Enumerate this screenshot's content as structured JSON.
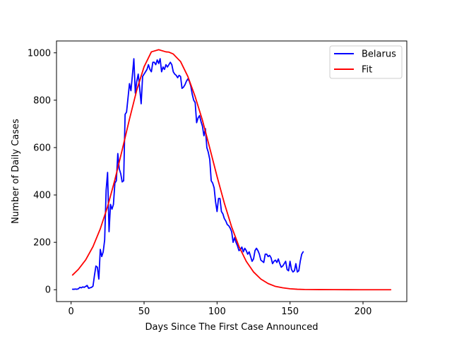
{
  "chart_data": {
    "type": "line",
    "title": "",
    "xlabel": "Days Since The First Case Announced",
    "ylabel": "Number of Daily Cases",
    "xlim": [
      -10,
      230
    ],
    "ylim": [
      -50,
      1050
    ],
    "xticks": [
      0,
      50,
      100,
      150,
      200
    ],
    "yticks": [
      0,
      200,
      400,
      600,
      800,
      1000
    ],
    "grid": false,
    "legend_position": "top-right",
    "series": [
      {
        "name": "Belarus",
        "color": "#0000ff",
        "x": [
          1,
          2,
          3,
          4,
          5,
          6,
          7,
          8,
          9,
          10,
          11,
          12,
          13,
          14,
          15,
          16,
          17,
          18,
          19,
          20,
          21,
          22,
          23,
          24,
          25,
          26,
          27,
          28,
          29,
          30,
          31,
          32,
          33,
          34,
          35,
          36,
          37,
          38,
          39,
          40,
          41,
          42,
          43,
          44,
          45,
          46,
          47,
          48,
          49,
          50,
          51,
          52,
          53,
          54,
          55,
          56,
          57,
          58,
          59,
          60,
          61,
          62,
          63,
          64,
          65,
          66,
          67,
          68,
          69,
          70,
          71,
          72,
          73,
          74,
          75,
          76,
          77,
          78,
          79,
          80,
          81,
          82,
          83,
          84,
          85,
          86,
          87,
          88,
          89,
          90,
          91,
          92,
          93,
          94,
          95,
          96,
          97,
          98,
          99,
          100,
          101,
          102,
          103,
          104,
          105,
          106,
          107,
          108,
          109,
          110,
          111,
          112,
          113,
          114,
          115,
          116,
          117,
          118,
          119,
          120,
          121,
          122,
          123,
          124,
          125,
          126,
          127,
          128,
          129,
          130,
          131,
          132,
          133,
          134,
          135,
          136,
          137,
          138,
          139,
          140,
          141,
          142,
          143,
          144,
          145,
          146,
          147,
          148,
          149,
          150,
          151,
          152,
          153,
          154,
          155,
          156,
          157,
          158,
          159
        ],
        "values": [
          2,
          2,
          3,
          2,
          4,
          10,
          8,
          12,
          10,
          14,
          18,
          6,
          8,
          10,
          15,
          60,
          100,
          95,
          45,
          170,
          140,
          160,
          210,
          420,
          495,
          245,
          360,
          340,
          360,
          450,
          460,
          575,
          510,
          490,
          455,
          460,
          740,
          750,
          810,
          870,
          840,
          905,
          975,
          830,
          880,
          910,
          850,
          785,
          900,
          910,
          920,
          930,
          950,
          930,
          920,
          960,
          960,
          950,
          970,
          955,
          975,
          920,
          940,
          930,
          950,
          940,
          950,
          960,
          950,
          920,
          910,
          905,
          895,
          905,
          900,
          850,
          855,
          865,
          880,
          890,
          880,
          860,
          825,
          800,
          790,
          705,
          725,
          735,
          710,
          690,
          650,
          680,
          600,
          580,
          550,
          460,
          450,
          430,
          370,
          330,
          385,
          385,
          330,
          320,
          300,
          290,
          275,
          270,
          260,
          245,
          200,
          220,
          200,
          185,
          165,
          170,
          180,
          160,
          175,
          165,
          150,
          160,
          140,
          120,
          130,
          165,
          175,
          165,
          150,
          125,
          120,
          115,
          150,
          150,
          140,
          145,
          135,
          110,
          120,
          125,
          115,
          130,
          110,
          95,
          100,
          110,
          120,
          85,
          80,
          120,
          85,
          75,
          80,
          110,
          75,
          80,
          120,
          150,
          160
        ]
      },
      {
        "name": "Fit",
        "color": "#ff0000",
        "x": [
          1,
          5,
          10,
          15,
          20,
          25,
          30,
          35,
          40,
          45,
          50,
          55,
          60,
          65,
          67,
          70,
          75,
          80,
          85,
          90,
          95,
          100,
          105,
          110,
          115,
          120,
          125,
          130,
          135,
          140,
          145,
          150,
          155,
          160,
          170,
          180,
          190,
          200,
          210,
          219
        ],
        "values": [
          62,
          86,
          126,
          182,
          257,
          351,
          464,
          590,
          720,
          843,
          941,
          1004,
          1013,
          1004,
          1003,
          995,
          963,
          900,
          815,
          715,
          598,
          478,
          365,
          265,
          183,
          120,
          75,
          45,
          26,
          14,
          8,
          4,
          2,
          1,
          0.5,
          0.2,
          0.1,
          0,
          0,
          0
        ]
      }
    ]
  }
}
